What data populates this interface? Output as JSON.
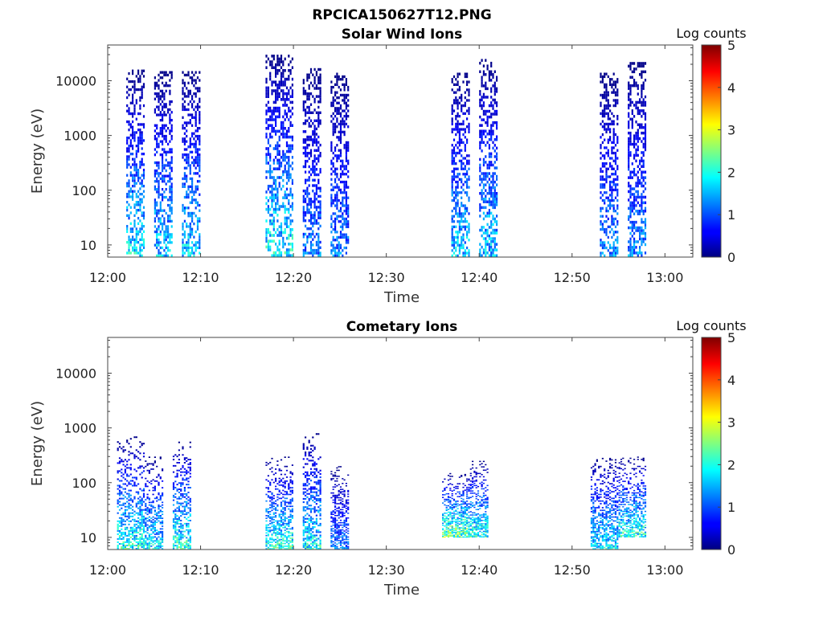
{
  "figure_title": "RPCICA150627T12.PNG",
  "chart_data": [
    {
      "type": "heatmap",
      "title": "Solar Wind Ions",
      "xlabel": "Time",
      "ylabel": "Energy (eV)",
      "x_ticks": [
        "12:00",
        "12:10",
        "12:20",
        "12:30",
        "12:40",
        "12:50",
        "13:00"
      ],
      "x_range": [
        "12:00",
        "13:03"
      ],
      "y_scale": "log",
      "y_ticks": [
        10,
        100,
        1000,
        10000
      ],
      "y_range": [
        6,
        45000
      ],
      "colorbar": {
        "title": "Log counts",
        "range": [
          0,
          5
        ],
        "ticks": [
          0,
          1,
          2,
          3,
          4,
          5
        ],
        "colormap": "jet"
      },
      "bursts": [
        {
          "time_start": "12:02",
          "time_end": "12:04",
          "e_min": 6,
          "e_max": 16000,
          "peak_log_counts": 2.2
        },
        {
          "time_start": "12:05",
          "time_end": "12:07",
          "e_min": 6,
          "e_max": 15000,
          "peak_log_counts": 2.0
        },
        {
          "time_start": "12:08",
          "time_end": "12:10",
          "e_min": 6,
          "e_max": 15000,
          "peak_log_counts": 2.0
        },
        {
          "time_start": "12:17",
          "time_end": "12:20",
          "e_min": 6,
          "e_max": 30000,
          "peak_log_counts": 2.3
        },
        {
          "time_start": "12:21",
          "time_end": "12:23",
          "e_min": 6,
          "e_max": 17000,
          "peak_log_counts": 1.5
        },
        {
          "time_start": "12:24",
          "time_end": "12:26",
          "e_min": 6,
          "e_max": 14000,
          "peak_log_counts": 1.5
        },
        {
          "time_start": "12:37",
          "time_end": "12:39",
          "e_min": 6,
          "e_max": 14000,
          "peak_log_counts": 2.0
        },
        {
          "time_start": "12:40",
          "time_end": "12:42",
          "e_min": 6,
          "e_max": 25000,
          "peak_log_counts": 2.0
        },
        {
          "time_start": "12:53",
          "time_end": "12:55",
          "e_min": 6,
          "e_max": 14000,
          "peak_log_counts": 1.6
        },
        {
          "time_start": "12:56",
          "time_end": "12:58",
          "e_min": 6,
          "e_max": 22000,
          "peak_log_counts": 1.6
        }
      ]
    },
    {
      "type": "heatmap",
      "title": "Cometary Ions",
      "xlabel": "Time",
      "ylabel": "Energy (eV)",
      "x_ticks": [
        "12:00",
        "12:10",
        "12:20",
        "12:30",
        "12:40",
        "12:50",
        "13:00"
      ],
      "x_range": [
        "12:00",
        "13:03"
      ],
      "y_scale": "log",
      "y_ticks": [
        10,
        100,
        1000,
        10000
      ],
      "y_range": [
        6,
        45000
      ],
      "colorbar": {
        "title": "Log counts",
        "range": [
          0,
          5
        ],
        "ticks": [
          0,
          1,
          2,
          3,
          4,
          5
        ],
        "colormap": "jet"
      },
      "bursts": [
        {
          "time_start": "12:01",
          "time_end": "12:04",
          "e_min": 6,
          "e_max": 700,
          "peak_log_counts": 2.5
        },
        {
          "time_start": "12:04",
          "time_end": "12:06",
          "e_min": 6,
          "e_max": 300,
          "peak_log_counts": 2.2
        },
        {
          "time_start": "12:07",
          "time_end": "12:09",
          "e_min": 6,
          "e_max": 600,
          "peak_log_counts": 2.5
        },
        {
          "time_start": "12:17",
          "time_end": "12:20",
          "e_min": 6,
          "e_max": 300,
          "peak_log_counts": 2.5
        },
        {
          "time_start": "12:21",
          "time_end": "12:23",
          "e_min": 6,
          "e_max": 800,
          "peak_log_counts": 2.3
        },
        {
          "time_start": "12:24",
          "time_end": "12:26",
          "e_min": 6,
          "e_max": 200,
          "peak_log_counts": 1.5
        },
        {
          "time_start": "12:36",
          "time_end": "12:39",
          "e_min": 10,
          "e_max": 150,
          "peak_log_counts": 3.0
        },
        {
          "time_start": "12:39",
          "time_end": "12:41",
          "e_min": 10,
          "e_max": 250,
          "peak_log_counts": 2.5
        },
        {
          "time_start": "12:52",
          "time_end": "12:55",
          "e_min": 6,
          "e_max": 300,
          "peak_log_counts": 2.2
        },
        {
          "time_start": "12:55",
          "time_end": "12:58",
          "e_min": 10,
          "e_max": 300,
          "peak_log_counts": 2.5
        }
      ]
    }
  ]
}
